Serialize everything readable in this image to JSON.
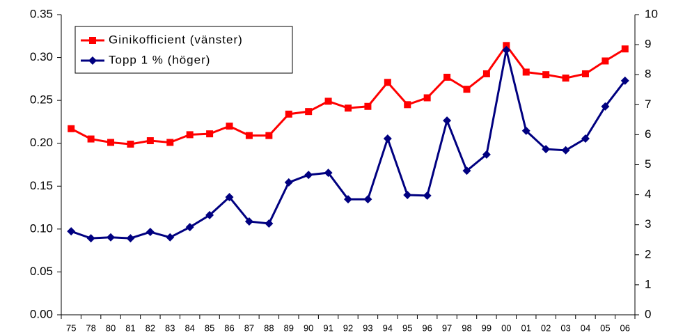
{
  "chart_data": {
    "type": "line",
    "categories": [
      "75",
      "78",
      "80",
      "81",
      "82",
      "83",
      "84",
      "85",
      "86",
      "87",
      "88",
      "89",
      "90",
      "91",
      "92",
      "93",
      "94",
      "95",
      "96",
      "97",
      "98",
      "99",
      "00",
      "01",
      "02",
      "03",
      "04",
      "05",
      "06"
    ],
    "series": [
      {
        "name": "Ginikofficient (vänster)",
        "color": "#ff0000",
        "marker": "square",
        "values": [
          0.217,
          0.205,
          0.201,
          0.199,
          0.203,
          0.201,
          0.21,
          0.211,
          0.22,
          0.209,
          0.209,
          0.234,
          0.237,
          0.249,
          0.241,
          0.243,
          0.271,
          0.245,
          0.253,
          0.277,
          0.263,
          0.281,
          0.314,
          0.283,
          0.28,
          0.276,
          0.281,
          0.296,
          0.31
        ]
      },
      {
        "name": "Topp 1 % (höger)",
        "color": "#000080",
        "marker": "diamond",
        "axis": "y2",
        "values": [
          2.78,
          2.55,
          2.58,
          2.55,
          2.76,
          2.58,
          2.92,
          3.32,
          3.92,
          3.11,
          3.04,
          4.41,
          4.66,
          4.73,
          3.85,
          3.85,
          5.87,
          3.99,
          3.97,
          6.47,
          4.8,
          5.34,
          8.82,
          6.13,
          5.52,
          5.48,
          5.87,
          6.94,
          7.8
        ]
      }
    ],
    "ylim": [
      0,
      0.35
    ],
    "yticks": [
      {
        "value": 0,
        "label": "0.00"
      },
      {
        "value": 0.05,
        "label": "0.05"
      },
      {
        "value": 0.1,
        "label": "0.10"
      },
      {
        "value": 0.15,
        "label": "0.15"
      },
      {
        "value": 0.2,
        "label": "0.20"
      },
      {
        "value": 0.25,
        "label": "0.25"
      },
      {
        "value": 0.3,
        "label": "0.30"
      },
      {
        "value": 0.35,
        "label": "0.35"
      }
    ],
    "y2lim": [
      0,
      10
    ],
    "y2ticks": [
      0,
      1,
      2,
      3,
      4,
      5,
      6,
      7,
      8,
      9,
      10
    ],
    "grid": false,
    "legend": "upper left"
  }
}
